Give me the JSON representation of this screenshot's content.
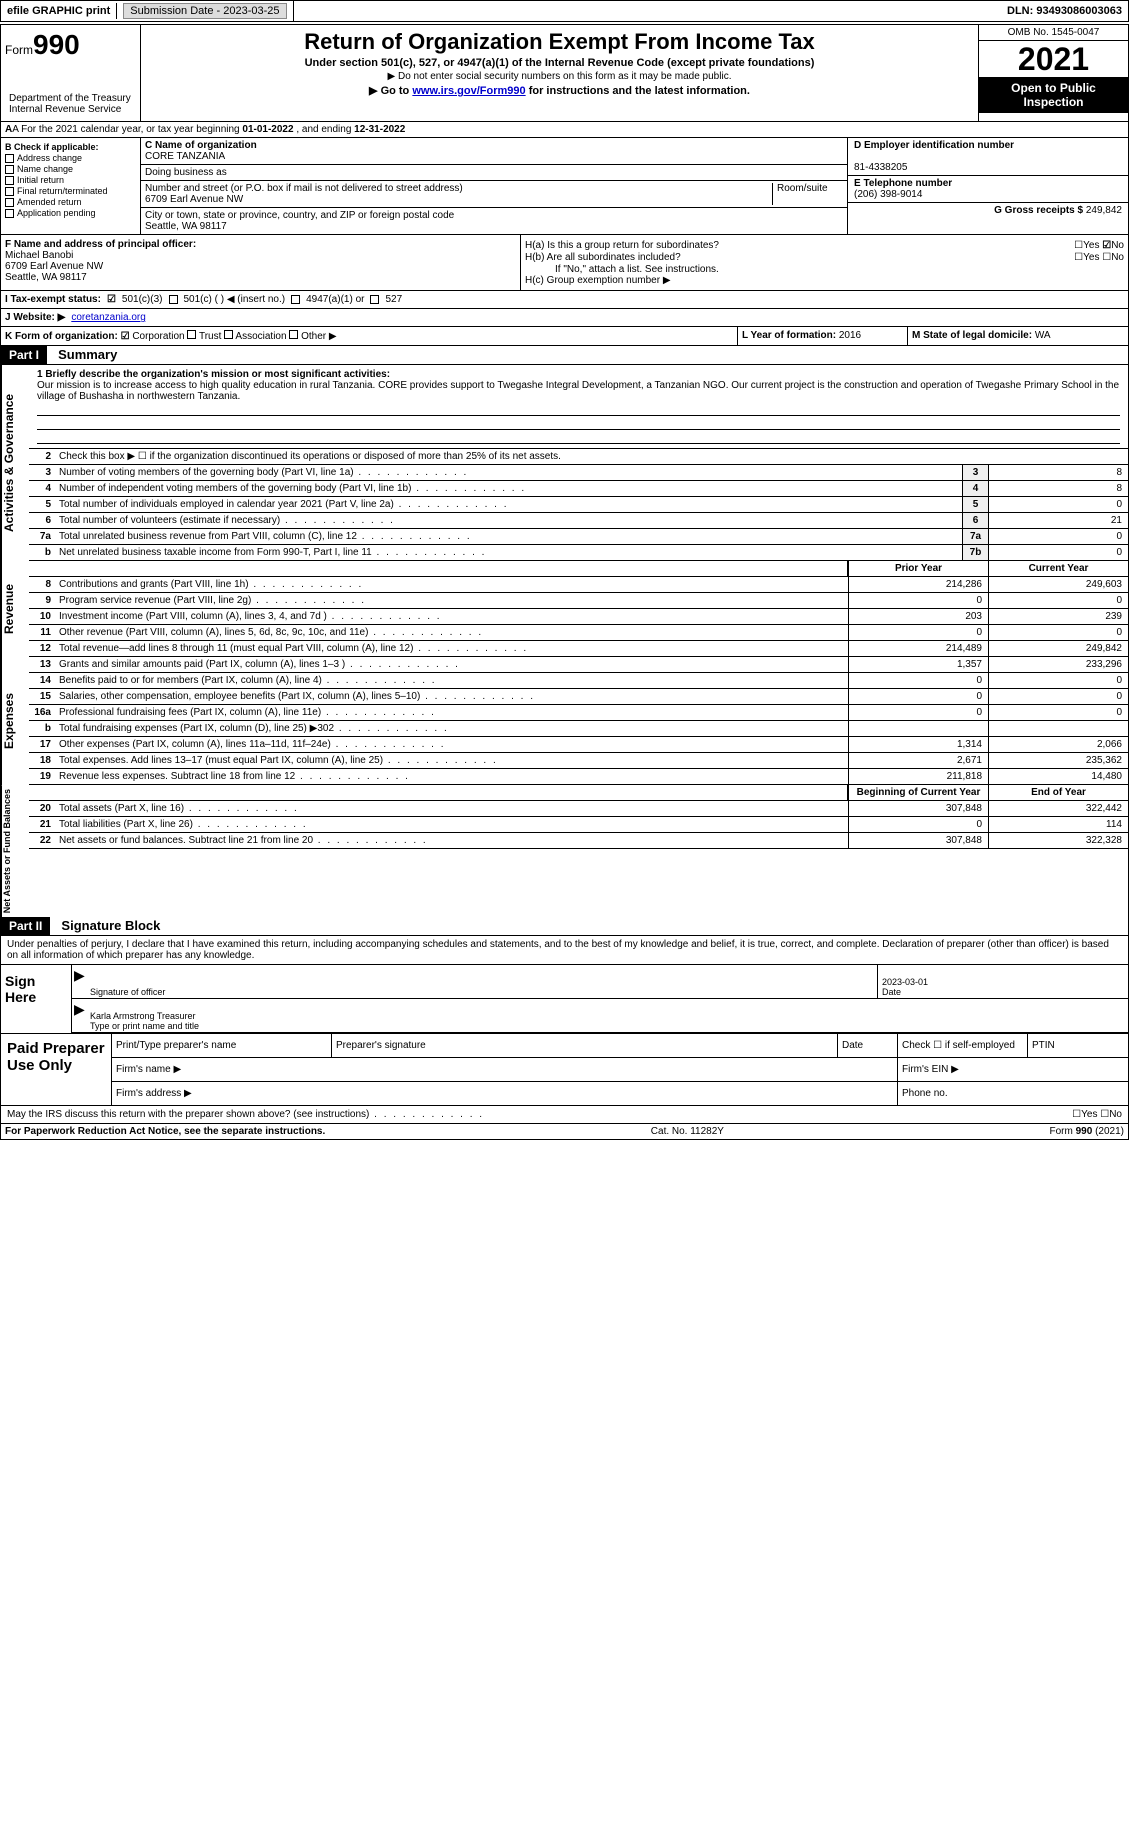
{
  "topbar": {
    "efile": "efile GRAPHIC print",
    "submission_label": "Submission Date - 2023-03-25",
    "dln_label": "DLN: 93493086003063"
  },
  "header": {
    "form_prefix": "Form",
    "form_number": "990",
    "title": "Return of Organization Exempt From Income Tax",
    "subtitle": "Under section 501(c), 527, or 4947(a)(1) of the Internal Revenue Code (except private foundations)",
    "note1": "▶ Do not enter social security numbers on this form as it may be made public.",
    "goto_prefix": "▶ Go to ",
    "goto_link": "www.irs.gov/Form990",
    "goto_suffix": " for instructions and the latest information.",
    "omb": "OMB No. 1545-0047",
    "year": "2021",
    "otp": "Open to Public Inspection",
    "dept": "Department of the Treasury Internal Revenue Service"
  },
  "section_a": {
    "prefix": "A For the 2021 calendar year, or tax year beginning ",
    "begin": "01-01-2022",
    "mid": " , and ending ",
    "end": "12-31-2022"
  },
  "block_b": {
    "heading": "B Check if applicable:",
    "items": [
      "Address change",
      "Name change",
      "Initial return",
      "Final return/terminated",
      "Amended return",
      "Application pending"
    ]
  },
  "block_c": {
    "label_name": "C Name of organization",
    "org_name": "CORE TANZANIA",
    "dba_label": "Doing business as",
    "street_label": "Number and street (or P.O. box if mail is not delivered to street address)",
    "room_label": "Room/suite",
    "street": "6709 Earl Avenue NW",
    "city_label": "City or town, state or province, country, and ZIP or foreign postal code",
    "city": "Seattle, WA  98117"
  },
  "block_d": {
    "label": "D Employer identification number",
    "value": "81-4338205"
  },
  "block_e": {
    "label": "E Telephone number",
    "value": "(206) 398-9014"
  },
  "block_g": {
    "label": "G Gross receipts $ ",
    "value": "249,842"
  },
  "block_f": {
    "label": "F  Name and address of principal officer:",
    "name": "Michael Banobi",
    "addr1": "6709 Earl Avenue NW",
    "addr2": "Seattle, WA  98117"
  },
  "block_h": {
    "ha": "H(a)  Is this a group return for subordinates?",
    "hb": "H(b)  Are all subordinates included?",
    "hb_note": "If \"No,\" attach a list. See instructions.",
    "hc": "H(c)  Group exemption number ▶",
    "yes": "Yes",
    "no": "No",
    "ha_answer": "No"
  },
  "status": {
    "i_label": "I  Tax-exempt status:",
    "opt1": "501(c)(3)",
    "opt2": "501(c) (  ) ◀ (insert no.)",
    "opt3": "4947(a)(1) or",
    "opt4": "527",
    "checked": "501(c)(3)"
  },
  "website": {
    "label": "J  Website: ▶",
    "value": "coretanzania.org"
  },
  "korg": {
    "label": "K Form of organization:",
    "opts": [
      "Corporation",
      "Trust",
      "Association",
      "Other ▶"
    ],
    "checked": "Corporation"
  },
  "l": {
    "label": "L Year of formation: ",
    "value": "2016"
  },
  "m": {
    "label": "M State of legal domicile: ",
    "value": "WA"
  },
  "part1": {
    "tag": "Part I",
    "title": "Summary",
    "line1_label": "1  Briefly describe the organization's mission or most significant activities:",
    "mission": "Our mission is to increase access to high quality education in rural Tanzania. CORE provides support to Twegashe Integral Development, a Tanzanian NGO. Our current project is the construction and operation of Twegashe Primary School in the village of Bushasha in northwestern Tanzania.",
    "line2": "Check this box ▶ ☐  if the organization discontinued its operations or disposed of more than 25% of its net assets.",
    "lines_gov": [
      {
        "no": "3",
        "text": "Number of voting members of the governing body (Part VI, line 1a)",
        "box": "3",
        "val": "8"
      },
      {
        "no": "4",
        "text": "Number of independent voting members of the governing body (Part VI, line 1b)",
        "box": "4",
        "val": "8"
      },
      {
        "no": "5",
        "text": "Total number of individuals employed in calendar year 2021 (Part V, line 2a)",
        "box": "5",
        "val": "0"
      },
      {
        "no": "6",
        "text": "Total number of volunteers (estimate if necessary)",
        "box": "6",
        "val": "21"
      },
      {
        "no": "7a",
        "text": "Total unrelated business revenue from Part VIII, column (C), line 12",
        "box": "7a",
        "val": "0"
      },
      {
        "no": "b",
        "text": "Net unrelated business taxable income from Form 990-T, Part I, line 11",
        "box": "7b",
        "val": "0"
      }
    ],
    "hdr_prior": "Prior Year",
    "hdr_current": "Current Year",
    "lines_rev": [
      {
        "no": "8",
        "text": "Contributions and grants (Part VIII, line 1h)",
        "prior": "214,286",
        "curr": "249,603"
      },
      {
        "no": "9",
        "text": "Program service revenue (Part VIII, line 2g)",
        "prior": "0",
        "curr": "0"
      },
      {
        "no": "10",
        "text": "Investment income (Part VIII, column (A), lines 3, 4, and 7d )",
        "prior": "203",
        "curr": "239"
      },
      {
        "no": "11",
        "text": "Other revenue (Part VIII, column (A), lines 5, 6d, 8c, 9c, 10c, and 11e)",
        "prior": "0",
        "curr": "0"
      },
      {
        "no": "12",
        "text": "Total revenue—add lines 8 through 11 (must equal Part VIII, column (A), line 12)",
        "prior": "214,489",
        "curr": "249,842"
      }
    ],
    "lines_exp": [
      {
        "no": "13",
        "text": "Grants and similar amounts paid (Part IX, column (A), lines 1–3 )",
        "prior": "1,357",
        "curr": "233,296"
      },
      {
        "no": "14",
        "text": "Benefits paid to or for members (Part IX, column (A), line 4)",
        "prior": "0",
        "curr": "0"
      },
      {
        "no": "15",
        "text": "Salaries, other compensation, employee benefits (Part IX, column (A), lines 5–10)",
        "prior": "0",
        "curr": "0"
      },
      {
        "no": "16a",
        "text": "Professional fundraising fees (Part IX, column (A), line 11e)",
        "prior": "0",
        "curr": "0"
      },
      {
        "no": "b",
        "text": "Total fundraising expenses (Part IX, column (D), line 25) ▶302",
        "prior": "",
        "curr": ""
      },
      {
        "no": "17",
        "text": "Other expenses (Part IX, column (A), lines 11a–11d, 11f–24e)",
        "prior": "1,314",
        "curr": "2,066"
      },
      {
        "no": "18",
        "text": "Total expenses. Add lines 13–17 (must equal Part IX, column (A), line 25)",
        "prior": "2,671",
        "curr": "235,362"
      },
      {
        "no": "19",
        "text": "Revenue less expenses. Subtract line 18 from line 12",
        "prior": "211,818",
        "curr": "14,480"
      }
    ],
    "hdr_begin": "Beginning of Current Year",
    "hdr_end": "End of Year",
    "lines_net": [
      {
        "no": "20",
        "text": "Total assets (Part X, line 16)",
        "prior": "307,848",
        "curr": "322,442"
      },
      {
        "no": "21",
        "text": "Total liabilities (Part X, line 26)",
        "prior": "0",
        "curr": "114"
      },
      {
        "no": "22",
        "text": "Net assets or fund balances. Subtract line 21 from line 20",
        "prior": "307,848",
        "curr": "322,328"
      }
    ]
  },
  "vtabs": {
    "gov": "Activities & Governance",
    "rev": "Revenue",
    "exp": "Expenses",
    "net": "Net Assets or Fund Balances"
  },
  "part2": {
    "tag": "Part II",
    "title": "Signature Block",
    "penalty": "Under penalties of perjury, I declare that I have examined this return, including accompanying schedules and statements, and to the best of my knowledge and belief, it is true, correct, and complete. Declaration of preparer (other than officer) is based on all information of which preparer has any knowledge."
  },
  "sign": {
    "here": "Sign Here",
    "sig_officer": "Signature of officer",
    "date": "Date",
    "date_val": "2023-03-01",
    "name_title": "Karla Armstrong Treasurer",
    "type_label": "Type or print name and title"
  },
  "prep": {
    "label": "Paid Preparer Use Only",
    "print_name": "Print/Type preparer's name",
    "sig": "Preparer's signature",
    "date": "Date",
    "check": "Check ☐ if self-employed",
    "ptin": "PTIN",
    "firm_name": "Firm's name  ▶",
    "firm_ein": "Firm's EIN ▶",
    "firm_addr": "Firm's address ▶",
    "phone": "Phone no."
  },
  "irs_discuss": {
    "text": "May the IRS discuss this return with the preparer shown above? (see instructions)",
    "yes": "Yes",
    "no": "No"
  },
  "footer": {
    "left": "For Paperwork Reduction Act Notice, see the separate instructions.",
    "mid": "Cat. No. 11282Y",
    "right": "Form 990 (2021)"
  }
}
